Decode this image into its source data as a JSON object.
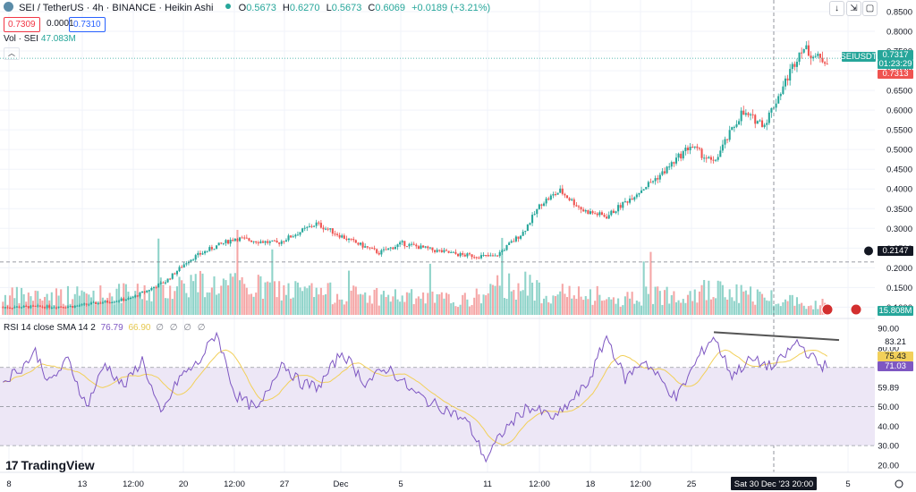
{
  "header": {
    "symbol": "SEI / TetherUS · 4h · BINANCE · Heikin Ashi",
    "o_label": "O",
    "o_value": "0.5673",
    "h_label": "H",
    "h_value": "0.6270",
    "l_label": "L",
    "l_value": "0.5673",
    "c_label": "C",
    "c_value": "0.6069",
    "change": "+0.0189 (+3.21%)"
  },
  "price_boxes": {
    "sell": "0.7309",
    "spread": "0.0001",
    "buy": "0.7310"
  },
  "volume": {
    "label": "Vol · SEI",
    "value": "47.083M",
    "last_label": "15.808M"
  },
  "rsi": {
    "label": "RSI 14 close SMA 14 2",
    "value": "76.79",
    "ma_value": "66.90",
    "extra": "∅ ∅ ∅ ∅",
    "last_label_1": "75.43",
    "last_label_2": "71.03",
    "trendline_label": "83.21",
    "axis_ticks": [
      "90.00",
      "80.00",
      "70.00",
      "59.89",
      "50.00",
      "40.00",
      "30.00",
      "20.00"
    ]
  },
  "price_axis": {
    "ticks": [
      "0.8500",
      "0.8000",
      "0.7500",
      "0.7000",
      "0.6500",
      "0.6000",
      "0.5500",
      "0.5000",
      "0.4500",
      "0.4000",
      "0.3500",
      "0.3000",
      "0.2500",
      "0.2000",
      "0.1500",
      "0.1000"
    ],
    "symbol_tag": "SEIUSDT",
    "last_price": "0.7317",
    "countdown": "01:23:29",
    "red_price": "0.7313",
    "crosshair_price": "0.2147"
  },
  "time_axis": {
    "labels": [
      "8",
      "13",
      "12:00",
      "20",
      "12:00",
      "27",
      "Dec",
      "5",
      "11",
      "12:00",
      "18",
      "12:00",
      "25",
      "5"
    ],
    "crosshair_label": "Sat 30 Dec '23  20:00"
  },
  "branding": "TradingView",
  "colors": {
    "up": "#26a69a",
    "down": "#ef5350",
    "rsi": "#7e57c2",
    "rsi_ma": "#f2d05a",
    "rsi_band": "#ede7f6"
  },
  "chart_data": {
    "type": "candlestick",
    "note_style": "Heikin Ashi, 4h",
    "price_keyframes": [
      [
        0,
        0.1
      ],
      [
        30,
        0.102
      ],
      [
        55,
        0.122
      ],
      [
        70,
        0.165
      ],
      [
        80,
        0.22
      ],
      [
        90,
        0.25
      ],
      [
        100,
        0.275
      ],
      [
        118,
        0.262
      ],
      [
        135,
        0.312
      ],
      [
        150,
        0.268
      ],
      [
        162,
        0.238
      ],
      [
        172,
        0.262
      ],
      [
        185,
        0.245
      ],
      [
        198,
        0.232
      ],
      [
        212,
        0.228
      ],
      [
        224,
        0.29
      ],
      [
        232,
        0.365
      ],
      [
        240,
        0.395
      ],
      [
        250,
        0.345
      ],
      [
        260,
        0.33
      ],
      [
        272,
        0.385
      ],
      [
        284,
        0.44
      ],
      [
        296,
        0.51
      ],
      [
        306,
        0.465
      ],
      [
        318,
        0.592
      ],
      [
        328,
        0.565
      ],
      [
        336,
        0.66
      ],
      [
        344,
        0.76
      ],
      [
        352,
        0.728
      ]
    ],
    "candle_count": 356,
    "volume_keyframes": [
      [
        0,
        0.25
      ],
      [
        60,
        0.3
      ],
      [
        80,
        0.45
      ],
      [
        100,
        0.4
      ],
      [
        140,
        0.3
      ],
      [
        200,
        0.2
      ],
      [
        220,
        0.45
      ],
      [
        230,
        0.35
      ],
      [
        260,
        0.2
      ],
      [
        300,
        0.35
      ],
      [
        330,
        0.25
      ],
      [
        352,
        0.15
      ]
    ],
    "volume_max_millions": 47.083,
    "rsi_keyframes": [
      [
        0,
        63
      ],
      [
        8,
        70
      ],
      [
        14,
        78
      ],
      [
        20,
        62
      ],
      [
        28,
        74
      ],
      [
        36,
        50
      ],
      [
        44,
        72
      ],
      [
        52,
        60
      ],
      [
        60,
        74
      ],
      [
        68,
        45
      ],
      [
        76,
        65
      ],
      [
        84,
        72
      ],
      [
        92,
        88
      ],
      [
        100,
        56
      ],
      [
        110,
        48
      ],
      [
        120,
        73
      ],
      [
        128,
        62
      ],
      [
        136,
        60
      ],
      [
        146,
        78
      ],
      [
        156,
        62
      ],
      [
        166,
        70
      ],
      [
        176,
        58
      ],
      [
        184,
        52
      ],
      [
        192,
        48
      ],
      [
        200,
        42
      ],
      [
        208,
        23
      ],
      [
        216,
        38
      ],
      [
        226,
        50
      ],
      [
        238,
        44
      ],
      [
        252,
        62
      ],
      [
        260,
        86
      ],
      [
        268,
        64
      ],
      [
        276,
        74
      ],
      [
        290,
        54
      ],
      [
        300,
        76
      ],
      [
        306,
        86
      ],
      [
        314,
        66
      ],
      [
        322,
        74
      ],
      [
        332,
        70
      ],
      [
        342,
        83
      ],
      [
        352,
        71
      ]
    ],
    "rsi_ylim": [
      20,
      90
    ],
    "price_ylim": [
      0.085,
      0.85
    ]
  }
}
